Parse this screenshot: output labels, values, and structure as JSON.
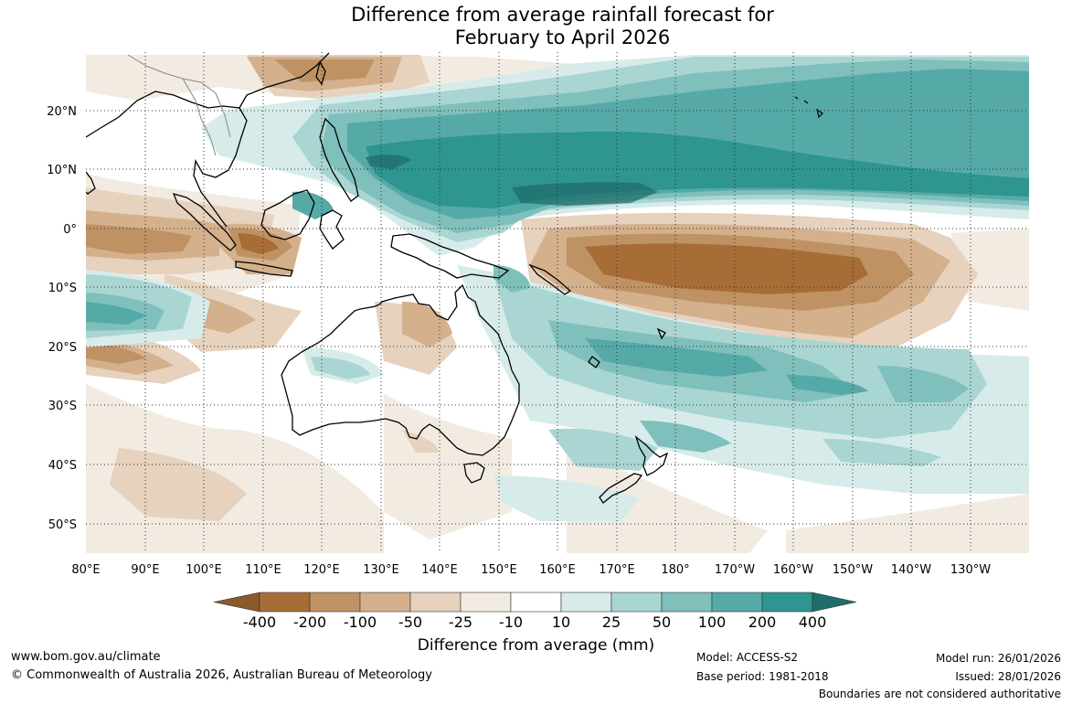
{
  "title": {
    "line1": "Difference from average rainfall forecast for",
    "line2": "February to April 2026"
  },
  "map": {
    "lat_labels": [
      "20°N",
      "10°N",
      "0°",
      "10°S",
      "20°S",
      "30°S",
      "40°S",
      "50°S"
    ],
    "lon_labels": [
      "80°E",
      "90°E",
      "100°E",
      "110°E",
      "120°E",
      "130°E",
      "140°E",
      "150°E",
      "160°E",
      "170°E",
      "180°",
      "170°W",
      "160°W",
      "150°W",
      "140°W",
      "130°W"
    ]
  },
  "colorbar": {
    "ticks": [
      "-400",
      "-200",
      "-100",
      "-50",
      "-25",
      "-10",
      "10",
      "25",
      "50",
      "100",
      "200",
      "400"
    ],
    "colors": [
      "#a86d36",
      "#bf9264",
      "#d4b08d",
      "#e6d2bd",
      "#f2ebe2",
      "#ffffff",
      "#d7ecea",
      "#a9d5d2",
      "#7fbfbc",
      "#55aaa8",
      "#2e9591",
      "#1f6e6c",
      "#8b5a2b"
    ],
    "label": "Difference from average (mm)"
  },
  "footer": {
    "website": "www.bom.gov.au/climate",
    "copyright": "© Commonwealth of Australia 2026, Australian Bureau of Meteorology",
    "model": "Model: ACCESS-S2",
    "base_period": "Base period: 1981-2018",
    "model_run": "Model run: 26/01/2026",
    "issued": "Issued: 28/01/2026",
    "disclaimer": "Boundaries are not considered authoritative"
  }
}
